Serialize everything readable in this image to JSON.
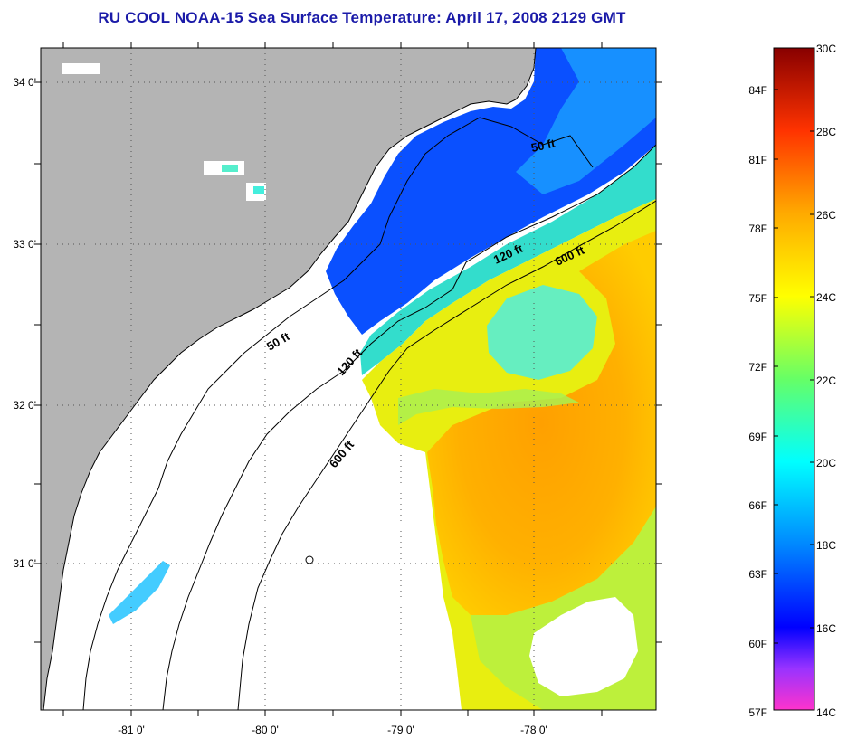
{
  "title": "RU COOL  NOAA-15  Sea Surface Temperature:  April 17, 2008 2129 GMT",
  "map": {
    "lat_labels": [
      "34 0'",
      "33 0'",
      "32 0'",
      "31 0'"
    ],
    "lon_labels": [
      "-81 0'",
      "-80 0'",
      "-79 0'",
      "-78 0'"
    ],
    "land_color": "#b4b4b4",
    "cloud_color": "#ffffff",
    "isobaths": [
      {
        "label": "50 ft"
      },
      {
        "label": "120 ft"
      },
      {
        "label": "600 ft"
      },
      {
        "label": "50 ft"
      },
      {
        "label": "120 ft"
      },
      {
        "label": "600 ft"
      }
    ]
  },
  "colorbar": {
    "fahrenheit_labels": [
      "84F",
      "81F",
      "78F",
      "75F",
      "72F",
      "69F",
      "66F",
      "63F",
      "60F",
      "57F"
    ],
    "celsius_labels": [
      "30C",
      "28C",
      "26C",
      "24C",
      "22C",
      "20C",
      "18C",
      "16C",
      "14C"
    ],
    "range_c": [
      14,
      30
    ],
    "stops": [
      {
        "c": 14,
        "color": "#ff33cc"
      },
      {
        "c": 15,
        "color": "#9933ff"
      },
      {
        "c": 16,
        "color": "#0000ff"
      },
      {
        "c": 18,
        "color": "#0088ff"
      },
      {
        "c": 20,
        "color": "#00ffff"
      },
      {
        "c": 22,
        "color": "#66ff66"
      },
      {
        "c": 24,
        "color": "#ffff00"
      },
      {
        "c": 26,
        "color": "#ffaa00"
      },
      {
        "c": 28,
        "color": "#ff3300"
      },
      {
        "c": 30,
        "color": "#880000"
      }
    ]
  }
}
